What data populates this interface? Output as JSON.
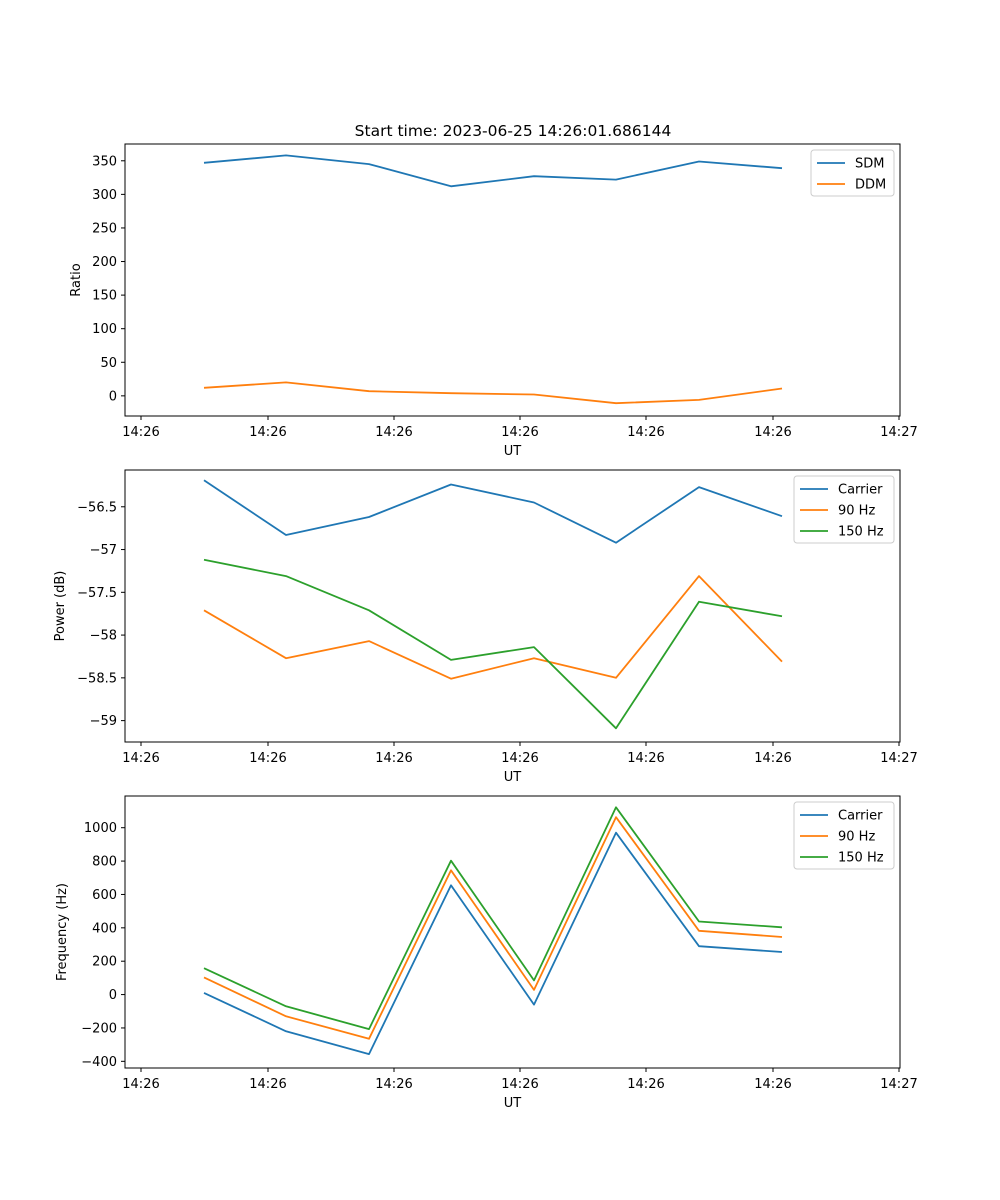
{
  "title": "Start time: 2023-06-25 14:26:01.686144",
  "colors": {
    "blue": "#1f77b4",
    "orange": "#ff7f0e",
    "green": "#2ca02c"
  },
  "chart_data": [
    {
      "type": "line",
      "title": "Start time: 2023-06-25 14:26:01.686144",
      "xlabel": "UT",
      "ylabel": "Ratio",
      "x_ticks": [
        "14:26",
        "14:26",
        "14:26",
        "14:26",
        "14:26",
        "14:26",
        "14:26"
      ],
      "x_tick_last": "14:27",
      "ylim": [
        -30,
        375
      ],
      "yticks": [
        0,
        50,
        100,
        150,
        200,
        250,
        300,
        350
      ],
      "legend": "top-right",
      "series": [
        {
          "name": "SDM",
          "color": "#1f77b4",
          "values": [
            347,
            358,
            345,
            312,
            327,
            322,
            349,
            339
          ]
        },
        {
          "name": "DDM",
          "color": "#ff7f0e",
          "values": [
            12,
            20,
            7,
            4,
            2,
            -11,
            -6,
            11
          ]
        }
      ]
    },
    {
      "type": "line",
      "xlabel": "UT",
      "ylabel": "Power (dB)",
      "x_ticks": [
        "14:26",
        "14:26",
        "14:26",
        "14:26",
        "14:26",
        "14:26",
        "14:26"
      ],
      "x_tick_last": "14:27",
      "ylim": [
        -59.25,
        -56.07
      ],
      "yticks": [
        -56.5,
        -57.0,
        -57.5,
        -58.0,
        -58.5,
        -59.0
      ],
      "legend": "top-right",
      "series": [
        {
          "name": "Carrier",
          "color": "#1f77b4",
          "values": [
            -56.19,
            -56.83,
            -56.62,
            -56.24,
            -56.45,
            -56.92,
            -56.27,
            -56.61
          ]
        },
        {
          "name": "90 Hz",
          "color": "#ff7f0e",
          "values": [
            -57.71,
            -58.27,
            -58.07,
            -58.51,
            -58.27,
            -58.5,
            -57.31,
            -58.31
          ]
        },
        {
          "name": "150 Hz",
          "color": "#2ca02c",
          "values": [
            -57.12,
            -57.31,
            -57.71,
            -58.29,
            -58.14,
            -59.09,
            -57.61,
            -57.78
          ]
        }
      ]
    },
    {
      "type": "line",
      "xlabel": "UT",
      "ylabel": "Frequency (Hz)",
      "x_ticks": [
        "14:26",
        "14:26",
        "14:26",
        "14:26",
        "14:26",
        "14:26",
        "14:26"
      ],
      "x_tick_last": "14:27",
      "ylim": [
        -440,
        1190
      ],
      "yticks": [
        -400,
        -200,
        0,
        200,
        400,
        600,
        800,
        1000
      ],
      "legend": "top-right",
      "series": [
        {
          "name": "Carrier",
          "color": "#1f77b4",
          "values": [
            10,
            -220,
            -357,
            655,
            -60,
            970,
            290,
            255
          ]
        },
        {
          "name": "90 Hz",
          "color": "#ff7f0e",
          "values": [
            103,
            -130,
            -265,
            745,
            28,
            1063,
            382,
            345
          ]
        },
        {
          "name": "150 Hz",
          "color": "#2ca02c",
          "values": [
            158,
            -70,
            -207,
            802,
            85,
            1122,
            438,
            403
          ]
        }
      ]
    }
  ]
}
